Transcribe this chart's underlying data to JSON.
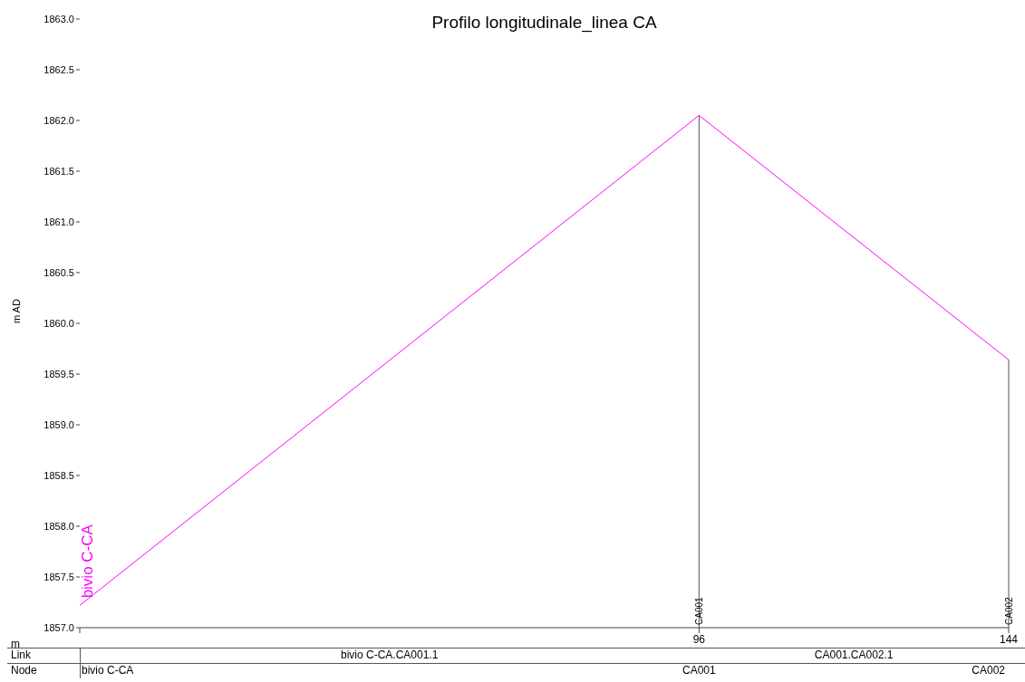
{
  "chart_data": {
    "type": "line",
    "title": "Profilo longitudinale_linea CA",
    "xlabel": "m",
    "ylabel": "m AD",
    "x": [
      0,
      96,
      144
    ],
    "series": [
      {
        "color": "#ff00ff",
        "values": [
          1857.22,
          1862.05,
          1859.64
        ]
      }
    ],
    "xlim": [
      0,
      144
    ],
    "xticks": [
      {
        "value": 0,
        "label": null
      },
      96,
      144
    ],
    "ylim": [
      1857,
      1863
    ],
    "yticks": [
      {
        "value": 1857,
        "label": "1857.0"
      },
      {
        "value": 1857.5,
        "label": "1857.5"
      },
      {
        "value": 1858,
        "label": "1858.0"
      },
      {
        "value": 1858.5,
        "label": "1858.5"
      },
      {
        "value": 1859,
        "label": "1859.0"
      },
      {
        "value": 1859.5,
        "label": "1859.5"
      },
      {
        "value": 1860,
        "label": "1860.0"
      },
      {
        "value": 1860.5,
        "label": "1860.5"
      },
      {
        "value": 1861,
        "label": "1861.0"
      },
      {
        "value": 1861.5,
        "label": "1861.5"
      },
      {
        "value": 1862,
        "label": "1862.0"
      },
      {
        "value": 1862.5,
        "label": "1862.5"
      },
      {
        "value": 1863,
        "label": "1863.0"
      }
    ],
    "ref_lines": [
      {
        "axis": "x",
        "value": 96,
        "label": "CA001",
        "color": "#555555"
      },
      {
        "axis": "x",
        "value": 144,
        "label": "CA002",
        "color": "#555555"
      }
    ],
    "annotations": [
      {
        "text": "bivio C-CA",
        "x": 0,
        "y": 1857.22
      },
      "Link",
      "bivio C-CA.CA001.1",
      "CA001.CA002.1",
      "Node",
      "bivio C-CA",
      "CA001",
      "CA002"
    ],
    "grid": false,
    "legend": false,
    "marker": "none",
    "line_style": "solid"
  }
}
